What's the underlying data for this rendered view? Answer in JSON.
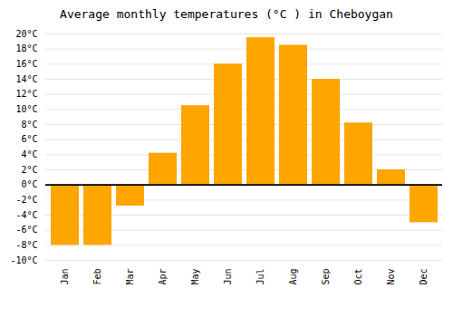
{
  "chart_data": {
    "type": "bar",
    "title": "Average monthly temperatures (°C ) in Cheboygan",
    "categories": [
      "Jan",
      "Feb",
      "Mar",
      "Apr",
      "May",
      "Jun",
      "Jul",
      "Aug",
      "Sep",
      "Oct",
      "Nov",
      "Dec"
    ],
    "values": [
      -8.0,
      -8.0,
      -2.8,
      4.2,
      10.5,
      16.0,
      19.5,
      18.5,
      14.0,
      8.2,
      2.0,
      -5.0
    ],
    "color": "#FFA500",
    "ylim": [
      -10,
      20
    ],
    "yticks": [
      {
        "value": -10,
        "label": "-10°C"
      },
      {
        "value": -8,
        "label": "-8°C"
      },
      {
        "value": -6,
        "label": "-6°C"
      },
      {
        "value": -4,
        "label": "-4°C"
      },
      {
        "value": -2,
        "label": "-2°C"
      },
      {
        "value": 0,
        "label": "0°C"
      },
      {
        "value": 2,
        "label": "2°C"
      },
      {
        "value": 4,
        "label": "4°C"
      },
      {
        "value": 6,
        "label": "6°C"
      },
      {
        "value": 8,
        "label": "8°C"
      },
      {
        "value": 10,
        "label": "10°C"
      },
      {
        "value": 12,
        "label": "12°C"
      },
      {
        "value": 14,
        "label": "14°C"
      },
      {
        "value": 16,
        "label": "16°C"
      },
      {
        "value": 18,
        "label": "18°C"
      },
      {
        "value": 20,
        "label": "20°C"
      }
    ],
    "grid": true
  }
}
